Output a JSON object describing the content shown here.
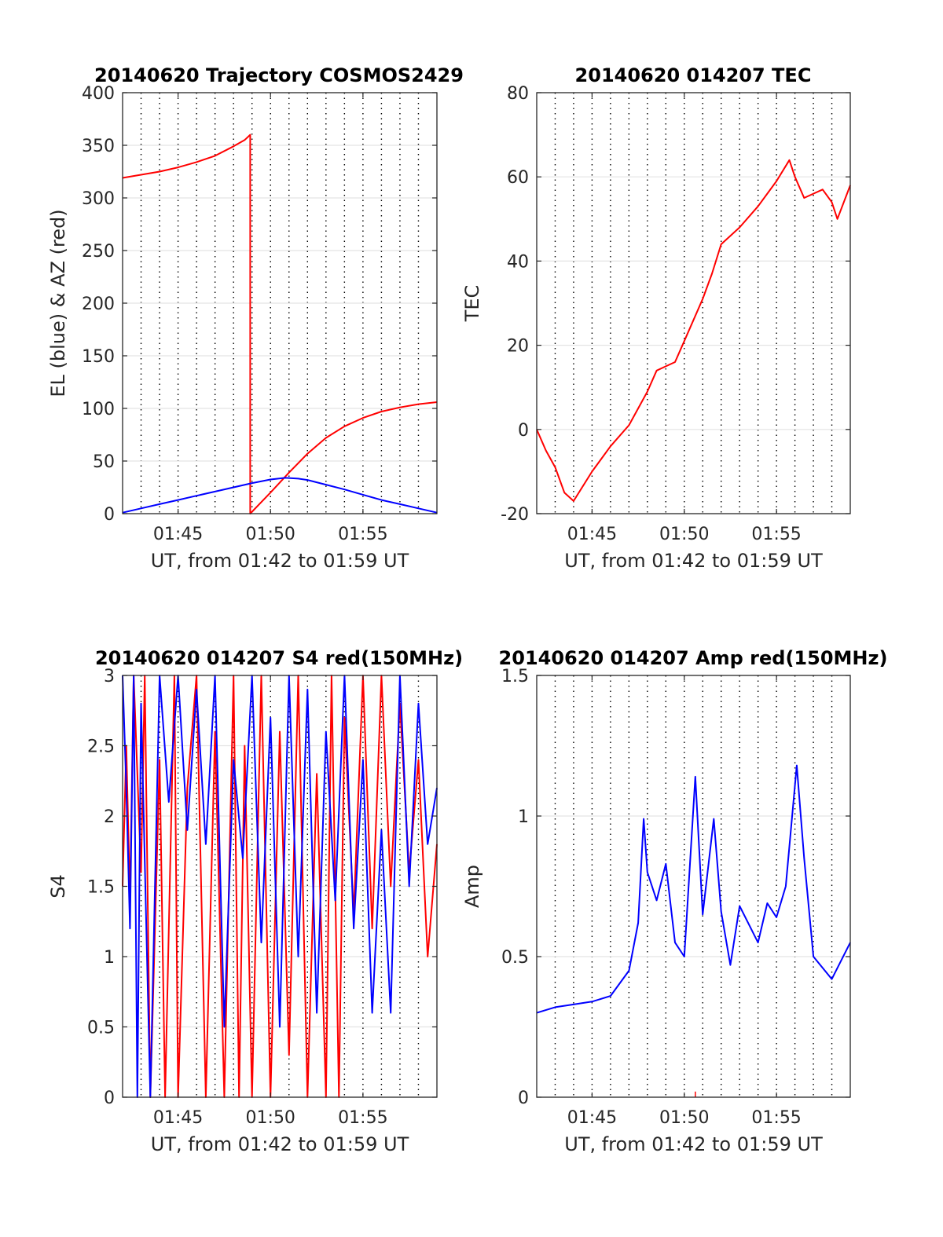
{
  "chart_data": [
    {
      "id": "trajectory",
      "type": "line",
      "title": "20140620 Trajectory COSMOS2429",
      "xlabel": "UT, from 01:42 to 01:59 UT",
      "ylabel": "EL (blue) & AZ (red)",
      "xlim": [
        "01:42",
        "01:59"
      ],
      "ylim": [
        0,
        400
      ],
      "xtick_labels": [
        "01:45",
        "01:50",
        "01:55"
      ],
      "ytick_labels": [
        "0",
        "50",
        "100",
        "150",
        "200",
        "250",
        "300",
        "350",
        "400"
      ],
      "grid": true,
      "series": [
        {
          "color": "#ff0000",
          "x": [
            "01:42",
            "01:43",
            "01:44",
            "01:45",
            "01:46",
            "01:47",
            "01:48",
            "01:48.6",
            "01:48.9",
            "01:48.9",
            "01:49.5",
            "01:50",
            "01:51",
            "01:52",
            "01:53",
            "01:54",
            "01:55",
            "01:56",
            "01:57",
            "01:58",
            "01:59"
          ],
          "y": [
            319,
            322,
            325,
            329,
            334,
            340,
            349,
            355,
            360,
            0,
            11,
            20,
            39,
            57,
            72,
            83,
            91,
            97,
            101,
            104,
            106
          ]
        },
        {
          "color": "#0000ff",
          "x": [
            "01:42",
            "01:43",
            "01:44",
            "01:45",
            "01:46",
            "01:47",
            "01:48",
            "01:49",
            "01:50",
            "01:50.8",
            "01:51.5",
            "01:52",
            "01:53",
            "01:54",
            "01:55",
            "01:56",
            "01:57",
            "01:58",
            "01:59"
          ],
          "y": [
            1,
            5,
            9,
            13,
            17,
            21,
            25,
            29,
            32.5,
            34,
            33.3,
            32,
            27.5,
            23,
            18,
            13,
            9,
            5,
            1
          ]
        }
      ]
    },
    {
      "id": "tec",
      "type": "line",
      "title": "20140620 014207 TEC",
      "xlabel": "UT, from 01:42 to 01:59 UT",
      "ylabel": "TEC",
      "xlim": [
        "01:42",
        "01:59"
      ],
      "ylim": [
        -20,
        80
      ],
      "xtick_labels": [
        "01:45",
        "01:50",
        "01:55"
      ],
      "ytick_labels": [
        "-20",
        "0",
        "20",
        "40",
        "60",
        "80"
      ],
      "grid": true,
      "series": [
        {
          "color": "#ff0000",
          "x": [
            "01:42",
            "01:42.5",
            "01:43",
            "01:43.5",
            "01:44",
            "01:45",
            "01:46",
            "01:47",
            "01:48",
            "01:48.5",
            "01:49",
            "01:49.5",
            "01:50",
            "01:51",
            "01:51.5",
            "01:52",
            "01:53",
            "01:54",
            "01:55",
            "01:55.7",
            "01:56",
            "01:56.5",
            "01:57",
            "01:57.5",
            "01:58",
            "01:58.3",
            "01:59"
          ],
          "y": [
            0,
            -5,
            -9,
            -15,
            -17,
            -10,
            -4,
            1,
            9,
            14,
            15,
            16,
            21,
            31,
            37,
            44,
            48,
            53,
            59,
            64,
            60,
            55,
            56,
            57,
            54,
            50,
            58
          ]
        }
      ]
    },
    {
      "id": "s4",
      "type": "line",
      "title": "20140620 014207 S4 red(150MHz)",
      "xlabel": "UT, from 01:42 to 01:59 UT",
      "ylabel": "S4",
      "xlim": [
        "01:42",
        "01:59"
      ],
      "ylim": [
        0,
        3
      ],
      "xtick_labels": [
        "01:45",
        "01:50",
        "01:55"
      ],
      "ytick_labels": [
        "0",
        "0.5",
        "1",
        "1.5",
        "2",
        "2.5",
        "3"
      ],
      "grid": true,
      "series": [
        {
          "color": "#ff0000",
          "x": [
            "01:42",
            "01:42.2",
            "01:42.4",
            "01:42.6",
            "01:43",
            "01:43.2",
            "01:43.5",
            "01:44",
            "01:44.3",
            "01:44.8",
            "01:45",
            "01:45.5",
            "01:46",
            "01:46.5",
            "01:47",
            "01:47.5",
            "01:48",
            "01:48.3",
            "01:48.6",
            "01:49",
            "01:49.5",
            "01:50",
            "01:50.5",
            "01:51",
            "01:51.5",
            "01:52",
            "01:52.5",
            "01:53",
            "01:53.3",
            "01:53.7",
            "01:54",
            "01:54.5",
            "01:55",
            "01:55.5",
            "01:56",
            "01:56.5",
            "01:57",
            "01:57.5",
            "01:58",
            "01:58.5",
            "01:59"
          ],
          "y": [
            1.5,
            2.5,
            1.4,
            3,
            1.6,
            3,
            0,
            2.4,
            0,
            3,
            0,
            2.2,
            3,
            0,
            2.6,
            0,
            3,
            0,
            2.5,
            0,
            3,
            0,
            2.6,
            0.3,
            3,
            0,
            2.3,
            0,
            3,
            0,
            2.7,
            1.3,
            3,
            1.2,
            3,
            1.5,
            2.8,
            1.6,
            2.4,
            1.0,
            1.8
          ]
        },
        {
          "color": "#0000ff",
          "x": [
            "01:42",
            "01:42.2",
            "01:42.4",
            "01:42.6",
            "01:42.8",
            "01:43",
            "01:43.5",
            "01:44",
            "01:44.5",
            "01:45",
            "01:45.5",
            "01:46",
            "01:46.5",
            "01:47",
            "01:47.5",
            "01:48",
            "01:48.5",
            "01:49",
            "01:49.5",
            "01:50",
            "01:50.5",
            "01:51",
            "01:51.5",
            "01:52",
            "01:52.5",
            "01:53",
            "01:53.5",
            "01:54",
            "01:54.5",
            "01:55",
            "01:55.5",
            "01:56",
            "01:56.5",
            "01:57",
            "01:57.5",
            "01:58",
            "01:58.5",
            "01:59"
          ],
          "y": [
            3,
            2.2,
            1.2,
            3,
            0,
            2.8,
            0,
            3,
            2.1,
            3,
            1.9,
            2.9,
            1.8,
            3,
            0.5,
            2.4,
            1.7,
            3,
            1.1,
            2.7,
            0.5,
            3,
            1.0,
            2.9,
            0.6,
            2.6,
            1.4,
            3,
            1.2,
            2.4,
            0.6,
            1.9,
            0.6,
            3,
            1.5,
            2.8,
            1.8,
            2.2
          ]
        }
      ]
    },
    {
      "id": "amp",
      "type": "line",
      "title": "20140620 014207 Amp red(150MHz)",
      "xlabel": "UT, from 01:42 to 01:59 UT",
      "ylabel": "Amp",
      "xlim": [
        "01:42",
        "01:59"
      ],
      "ylim": [
        0,
        1.5
      ],
      "xtick_labels": [
        "01:45",
        "01:50",
        "01:55"
      ],
      "ytick_labels": [
        "0",
        "0.5",
        "1",
        "1.5"
      ],
      "grid": true,
      "series": [
        {
          "color": "#0000ff",
          "x": [
            "01:42",
            "01:43",
            "01:44",
            "01:45",
            "01:46",
            "01:47",
            "01:47.5",
            "01:47.8",
            "01:48",
            "01:48.5",
            "01:49",
            "01:49.5",
            "01:50",
            "01:50.6",
            "01:51",
            "01:51.6",
            "01:52",
            "01:52.5",
            "01:53",
            "01:54",
            "01:54.5",
            "01:55",
            "01:55.5",
            "01:56.1",
            "01:56.5",
            "01:57",
            "01:58",
            "01:59"
          ],
          "y": [
            0.3,
            0.32,
            0.33,
            0.34,
            0.36,
            0.45,
            0.62,
            0.99,
            0.8,
            0.7,
            0.83,
            0.55,
            0.5,
            1.14,
            0.65,
            0.99,
            0.66,
            0.47,
            0.68,
            0.55,
            0.69,
            0.64,
            0.75,
            1.18,
            0.85,
            0.5,
            0.42,
            0.55
          ]
        },
        {
          "color": "#ff0000",
          "x": [
            "01:50.6"
          ],
          "y": [
            0.02
          ]
        }
      ]
    }
  ]
}
